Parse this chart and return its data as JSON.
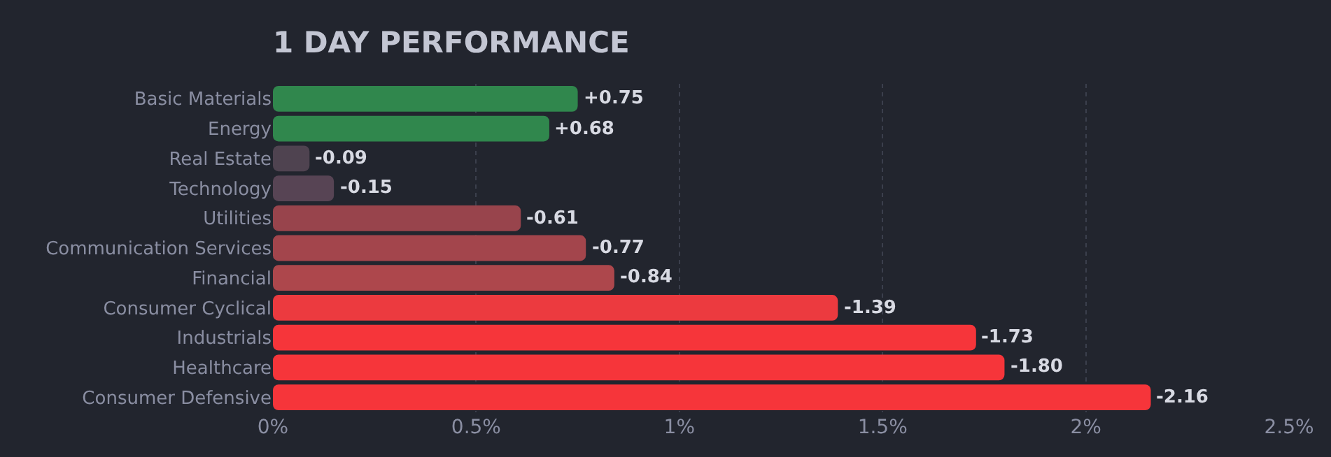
{
  "chart_data": {
    "type": "bar",
    "title": "1 DAY PERFORMANCE",
    "orientation": "horizontal",
    "categories": [
      "Basic Materials",
      "Energy",
      "Real Estate",
      "Technology",
      "Utilities",
      "Communication Services",
      "Financial",
      "Consumer Cyclical",
      "Industrials",
      "Healthcare",
      "Consumer Defensive"
    ],
    "values": [
      0.75,
      0.68,
      -0.09,
      -0.15,
      -0.61,
      -0.77,
      -0.84,
      -1.39,
      -1.73,
      -1.8,
      -2.16
    ],
    "base": [
      0,
      0,
      0.09,
      0.15,
      0.61,
      0.77,
      0.84,
      1.39,
      1.73,
      1.8,
      2.16
    ],
    "value_labels": [
      "+0.75",
      "+0.68",
      "-0.09",
      "-0.15",
      "-0.61",
      "-0.77",
      "-0.84",
      "-1.39",
      "-1.73",
      "-1.80",
      "-2.16"
    ],
    "colors": [
      "#30874d",
      "#30874d",
      "#4f4350",
      "#574454",
      "#98444c",
      "#a3454c",
      "#ad474c",
      "#ec3a3f",
      "#f6353a",
      "#f6353a",
      "#f6353a"
    ],
    "xlim": [
      0,
      2.5
    ],
    "xticks": [
      {
        "value": 0,
        "label": "0%"
      },
      {
        "value": 0.5,
        "label": "0.5%"
      },
      {
        "value": 1,
        "label": "1%"
      },
      {
        "value": 1.5,
        "label": "1.5%"
      },
      {
        "value": 2,
        "label": "2%"
      },
      {
        "value": 2.5,
        "label": "2.5%"
      }
    ],
    "grid": "x",
    "legend": false
  }
}
